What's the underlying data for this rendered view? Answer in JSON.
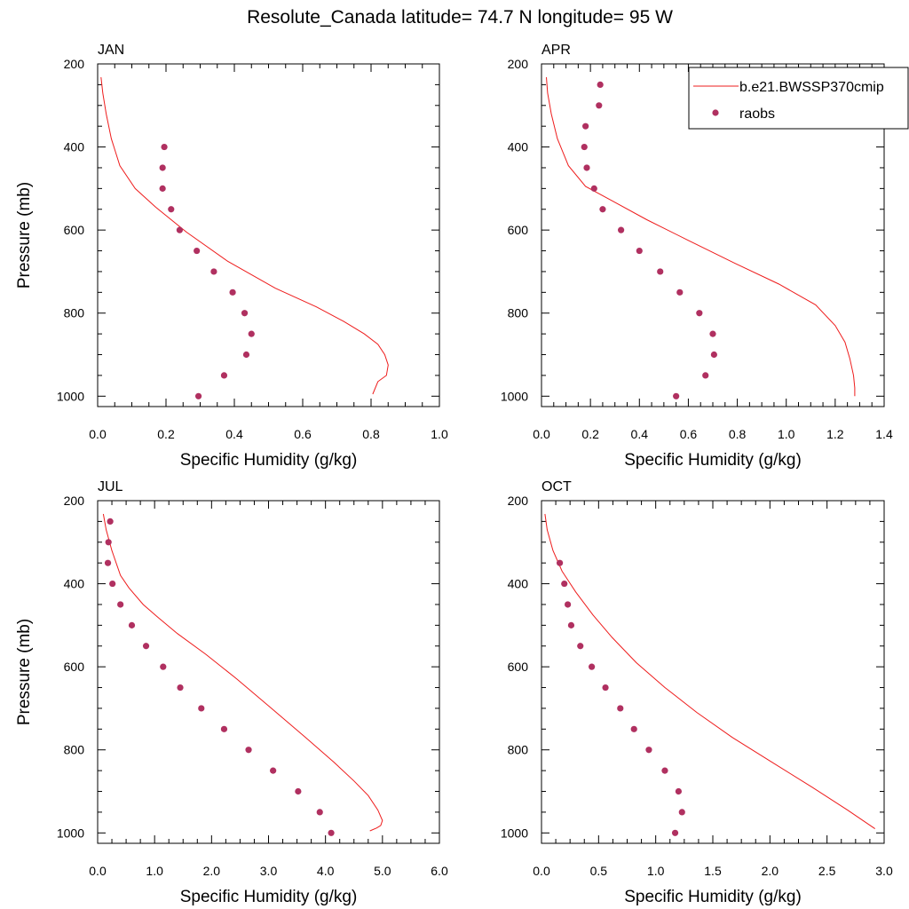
{
  "title": "Resolute_Canada  latitude= 74.7 N longitude= 95 W",
  "colors": {
    "model": "#ee1c1c",
    "obs": "#b03060"
  },
  "legend": {
    "location": "top-right of APR panel",
    "model_label": "b.e21.BWSSP370cmip",
    "obs_label": "raobs"
  },
  "chart_data": [
    {
      "panel": "JAN",
      "type": "line+scatter",
      "title": "JAN",
      "xlabel": "Specific Humidity (g/kg)",
      "ylabel": "Pressure (mb)",
      "xlim": [
        0,
        1.0
      ],
      "ylim": [
        1025,
        200
      ],
      "y_reversed": true,
      "xticks": [
        "0.0",
        "0.2",
        "0.4",
        "0.6",
        "0.8",
        "1.0"
      ],
      "yticks": [
        "200",
        "400",
        "600",
        "800",
        "1000"
      ],
      "series": [
        {
          "name": "b.e21.BWSSP370cmip",
          "kind": "line",
          "x": [
            0.01,
            0.015,
            0.025,
            0.04,
            0.065,
            0.11,
            0.17,
            0.26,
            0.38,
            0.52,
            0.64,
            0.72,
            0.78,
            0.82,
            0.84,
            0.85,
            0.845,
            0.82,
            0.805
          ],
          "y": [
            232,
            270,
            320,
            380,
            445,
            500,
            545,
            605,
            675,
            740,
            785,
            820,
            850,
            875,
            900,
            925,
            950,
            965,
            995
          ]
        },
        {
          "name": "raobs",
          "kind": "scatter",
          "x": [
            0.195,
            0.19,
            0.19,
            0.215,
            0.24,
            0.29,
            0.34,
            0.395,
            0.43,
            0.45,
            0.435,
            0.37,
            0.295
          ],
          "y": [
            400,
            450,
            500,
            550,
            600,
            650,
            700,
            750,
            800,
            850,
            900,
            950,
            1000
          ]
        }
      ]
    },
    {
      "panel": "APR",
      "type": "line+scatter",
      "title": "APR",
      "xlabel": "Specific Humidity (g/kg)",
      "ylabel": "",
      "xlim": [
        0,
        1.4
      ],
      "ylim": [
        1025,
        200
      ],
      "y_reversed": true,
      "xticks": [
        "0.0",
        "0.2",
        "0.4",
        "0.6",
        "0.8",
        "1.0",
        "1.2",
        "1.4"
      ],
      "yticks": [
        "200",
        "400",
        "600",
        "800",
        "1000"
      ],
      "series": [
        {
          "name": "b.e21.BWSSP370cmip",
          "kind": "line",
          "x": [
            0.02,
            0.025,
            0.04,
            0.065,
            0.11,
            0.18,
            0.29,
            0.43,
            0.6,
            0.79,
            0.97,
            1.12,
            1.2,
            1.24,
            1.26,
            1.275,
            1.28,
            1.28
          ],
          "y": [
            232,
            270,
            320,
            380,
            445,
            495,
            530,
            575,
            625,
            680,
            730,
            780,
            830,
            870,
            910,
            950,
            980,
            1000
          ]
        },
        {
          "name": "raobs",
          "kind": "scatter",
          "x": [
            0.24,
            0.235,
            0.18,
            0.175,
            0.185,
            0.215,
            0.25,
            0.325,
            0.4,
            0.485,
            0.565,
            0.645,
            0.7,
            0.705,
            0.67,
            0.55
          ],
          "y": [
            250,
            300,
            350,
            400,
            450,
            500,
            550,
            600,
            650,
            700,
            750,
            800,
            850,
            900,
            950,
            1000
          ]
        }
      ]
    },
    {
      "panel": "JUL",
      "type": "line+scatter",
      "title": "JUL",
      "xlabel": "Specific Humidity (g/kg)",
      "ylabel": "Pressure (mb)",
      "xlim": [
        0,
        6.0
      ],
      "ylim": [
        1025,
        200
      ],
      "y_reversed": true,
      "xticks": [
        "0.0",
        "1.0",
        "2.0",
        "3.0",
        "4.0",
        "5.0",
        "6.0"
      ],
      "yticks": [
        "200",
        "400",
        "600",
        "800",
        "1000"
      ],
      "series": [
        {
          "name": "b.e21.BWSSP370cmip",
          "kind": "line",
          "x": [
            0.1,
            0.15,
            0.25,
            0.4,
            0.55,
            0.8,
            1.05,
            1.4,
            1.9,
            2.45,
            3.05,
            3.65,
            4.15,
            4.5,
            4.75,
            4.92,
            5.0,
            4.97,
            4.9,
            4.78
          ],
          "y": [
            232,
            270,
            320,
            380,
            410,
            450,
            480,
            520,
            570,
            630,
            700,
            770,
            830,
            875,
            910,
            945,
            970,
            982,
            988,
            995
          ]
        },
        {
          "name": "raobs",
          "kind": "scatter",
          "x": [
            0.22,
            0.19,
            0.18,
            0.26,
            0.4,
            0.6,
            0.85,
            1.15,
            1.45,
            1.82,
            2.22,
            2.65,
            3.08,
            3.52,
            3.9,
            4.1
          ],
          "y": [
            250,
            300,
            350,
            400,
            450,
            500,
            550,
            600,
            650,
            700,
            750,
            800,
            850,
            900,
            950,
            1000
          ]
        }
      ]
    },
    {
      "panel": "OCT",
      "type": "line+scatter",
      "title": "OCT",
      "xlabel": "Specific Humidity (g/kg)",
      "ylabel": "",
      "xlim": [
        0,
        3.0
      ],
      "ylim": [
        1025,
        200
      ],
      "y_reversed": true,
      "xticks": [
        "0.0",
        "0.5",
        "1.0",
        "1.5",
        "2.0",
        "2.5",
        "3.0"
      ],
      "yticks": [
        "200",
        "400",
        "600",
        "800",
        "1000"
      ],
      "series": [
        {
          "name": "b.e21.BWSSP370cmip",
          "kind": "line",
          "x": [
            0.03,
            0.05,
            0.1,
            0.18,
            0.3,
            0.45,
            0.62,
            0.83,
            1.08,
            1.36,
            1.67,
            2.02,
            2.37,
            2.68,
            2.92
          ],
          "y": [
            232,
            270,
            320,
            370,
            420,
            475,
            530,
            590,
            650,
            710,
            770,
            830,
            890,
            945,
            990
          ]
        },
        {
          "name": "raobs",
          "kind": "scatter",
          "x": [
            0.16,
            0.2,
            0.23,
            0.26,
            0.34,
            0.44,
            0.56,
            0.69,
            0.81,
            0.94,
            1.08,
            1.2,
            1.23,
            1.17
          ],
          "y": [
            350,
            400,
            450,
            500,
            550,
            600,
            650,
            700,
            750,
            800,
            850,
            900,
            950,
            1000
          ]
        }
      ]
    }
  ]
}
